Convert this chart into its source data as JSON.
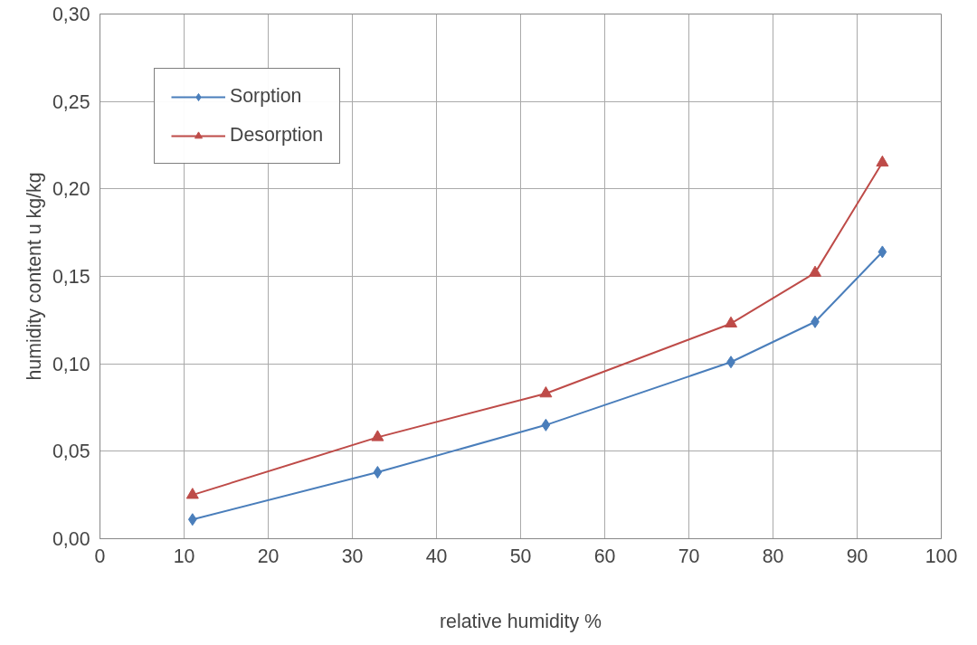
{
  "chart_data": {
    "type": "line",
    "xlabel": "relative humidity %",
    "ylabel": "humidity content u kg/kg",
    "xlim": [
      0,
      100
    ],
    "xticks": [
      0,
      10,
      20,
      30,
      40,
      50,
      60,
      70,
      80,
      90,
      100
    ],
    "ylim": [
      0,
      0.3
    ],
    "yticks": [
      {
        "value": 0,
        "label": "0,00"
      },
      {
        "value": 0.05,
        "label": "0,05"
      },
      {
        "value": 0.1,
        "label": "0,10"
      },
      {
        "value": 0.15,
        "label": "0,15"
      },
      {
        "value": 0.2,
        "label": "0,20"
      },
      {
        "value": 0.25,
        "label": "0,25"
      },
      {
        "value": 0.3,
        "label": "0,30"
      }
    ],
    "x": [
      11,
      33,
      53,
      75,
      85,
      93
    ],
    "series": [
      {
        "name": "Sorption",
        "color": "#4a7ebb",
        "marker": "diamond",
        "values": [
          0.011,
          0.038,
          0.065,
          0.101,
          0.124,
          0.164
        ]
      },
      {
        "name": "Desorption",
        "color": "#be4b48",
        "marker": "triangle",
        "values": [
          0.025,
          0.058,
          0.083,
          0.123,
          0.152,
          0.215
        ]
      }
    ],
    "grid": true,
    "legend": "top left",
    "line_style": "solid"
  }
}
